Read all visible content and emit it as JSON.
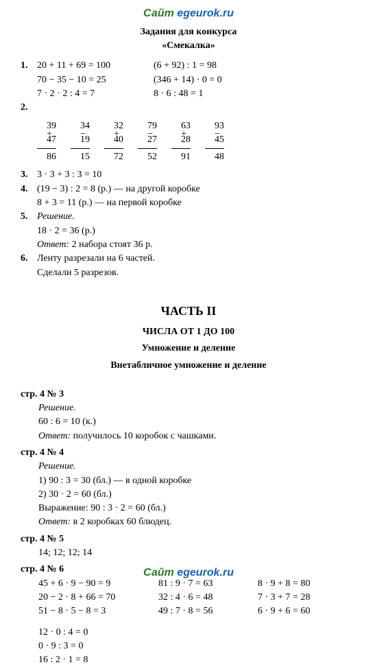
{
  "site": {
    "word1": "Сайт",
    "word2": "egeurok.ru"
  },
  "header": {
    "line1": "Задания для конкурса",
    "line2": "«Смекалка»"
  },
  "task1": {
    "num": "1.",
    "col1": [
      "20 + 11 + 69 = 100",
      "70 − 35 − 10 = 25",
      "7 · 2 · 2 : 4 = 7"
    ],
    "col2": [
      "(6 + 92) : 1 = 98",
      "(346 + 14) · 0 = 0",
      "8 · 6 : 48 = 1"
    ]
  },
  "task2": {
    "num": "2.",
    "cols": [
      {
        "op": "+",
        "a": "39",
        "b": "47",
        "r": "86"
      },
      {
        "op": "−",
        "a": "34",
        "b": "19",
        "r": "15"
      },
      {
        "op": "+",
        "a": "32",
        "b": "40",
        "r": "72"
      },
      {
        "op": "−",
        "a": "79",
        "b": "27",
        "r": "52"
      },
      {
        "op": "+",
        "a": "63",
        "b": "28",
        "r": "91"
      },
      {
        "op": "−",
        "a": "93",
        "b": "45",
        "r": "48"
      }
    ]
  },
  "task3": {
    "num": "3.",
    "text": "3 · 3 + 3 : 3 = 10"
  },
  "task4": {
    "num": "4.",
    "l1": "(19 − 3) : 2 = 8 (р.) — на другой коробке",
    "l2": "8 + 3 = 11 (р.) — на первой коробке"
  },
  "task5": {
    "num": "5.",
    "l1": "Решение.",
    "l2": "18 · 2 = 36 (р.)",
    "l3": "Ответ:",
    "l3b": " 2 набора стоят 36 р."
  },
  "task6": {
    "num": "6.",
    "l1": "Ленту разрезали на 6 частей.",
    "l2": "Сделали 5 разрезов."
  },
  "part2": {
    "title": "ЧАСТЬ II",
    "sub1": "ЧИСЛА ОТ 1 ДО 100",
    "sub2": "Умножение и деление",
    "sub3": "Внетабличное умножение и деление"
  },
  "p4n3": {
    "ref": "стр. 4 № 3",
    "l1": "Решение.",
    "l2": "60 : 6 = 10 (к.)",
    "l3": "Ответ:",
    "l3b": " получилось 10 коробок с чашками."
  },
  "p4n4": {
    "ref": "стр. 4 № 4",
    "l1": "Решение.",
    "l2": "1) 90 : 3 = 30 (бл.) — в одной коробке",
    "l3": "2) 30 · 2 = 60 (бл.)",
    "l4": "Выражение: 90 : 3 · 2 = 60 (бл.)",
    "l5": "Ответ:",
    "l5b": " в 2 коробках 60 блюдец."
  },
  "p4n5": {
    "ref": "стр. 4 № 5",
    "l1": "14; 12; 12; 14"
  },
  "p4n6": {
    "ref": "стр. 4 № 6",
    "r1": {
      "c1": "45 + 6 · 9 − 90 = 9",
      "c2": "81 : 9 · 7 = 63",
      "c3": "8 · 9 + 8 = 80"
    },
    "r2": {
      "c1": "20 − 2 · 8 + 66 = 70",
      "c2": "32 : 4 · 6 = 48",
      "c3": "7 · 3 + 7 = 28"
    },
    "r3": {
      "c1": "51 − 8 · 5 − 8 = 3",
      "c2": "49 : 7 · 8 = 56",
      "c3": "6 · 9 + 6 = 60"
    },
    "b1": "12 · 0 : 4 = 0",
    "b2": "0 · 9 : 3 = 0",
    "b3": "16 : 2 · 1 = 8"
  }
}
